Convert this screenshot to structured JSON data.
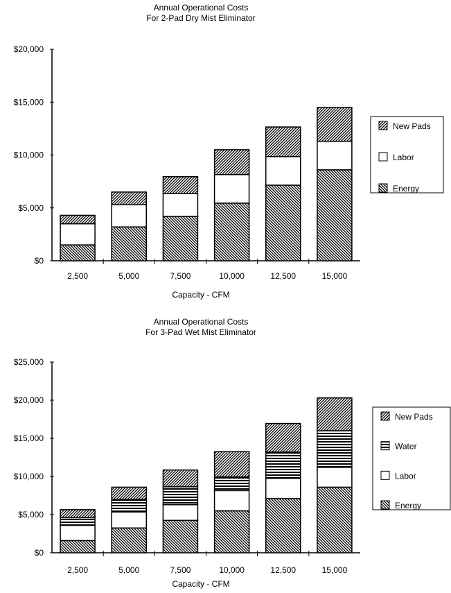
{
  "chart_data": [
    {
      "type": "bar",
      "stacked": true,
      "title": "Annual Operational Costs",
      "subtitle": "For 2-Pad Dry Mist Eliminator",
      "xlabel": "Capacity - CFM",
      "ylabel": "",
      "ylim": [
        0,
        20000
      ],
      "yticks": [
        "$0",
        "$5,000",
        "$10,000",
        "$15,000",
        "$20,000"
      ],
      "ytick_values": [
        0,
        5000,
        10000,
        15000,
        20000
      ],
      "categories": [
        "2,500",
        "5,000",
        "7,500",
        "10,000",
        "12,500",
        "15,000"
      ],
      "legend_position": "right",
      "legend_order": [
        "New Pads",
        "Labor",
        "Energy"
      ],
      "series": [
        {
          "name": "Energy",
          "pattern": "diagonal-back",
          "values": [
            1500,
            3200,
            4200,
            5450,
            7150,
            8600
          ]
        },
        {
          "name": "Labor",
          "pattern": "blank",
          "values": [
            2000,
            2100,
            2150,
            2700,
            2700,
            2700
          ]
        },
        {
          "name": "New Pads",
          "pattern": "diagonal-forward",
          "values": [
            800,
            1200,
            1600,
            2350,
            2800,
            3200
          ]
        }
      ]
    },
    {
      "type": "bar",
      "stacked": true,
      "title": "Annual Operational Costs",
      "subtitle": "For 3-Pad Wet Mist Eliminator",
      "xlabel": "Capacity - CFM",
      "ylabel": "",
      "ylim": [
        0,
        25000
      ],
      "yticks": [
        "$0",
        "$5,000",
        "$10,000",
        "$15,000",
        "$20,000",
        "$25,000"
      ],
      "ytick_values": [
        0,
        5000,
        10000,
        15000,
        20000,
        25000
      ],
      "categories": [
        "2,500",
        "5,000",
        "7,500",
        "10,000",
        "12,500",
        "15,000"
      ],
      "legend_position": "right",
      "legend_order": [
        "New Pads",
        "Water",
        "Labor",
        "Energy"
      ],
      "series": [
        {
          "name": "Energy",
          "pattern": "diagonal-back",
          "values": [
            1600,
            3250,
            4250,
            5500,
            7100,
            8600
          ]
        },
        {
          "name": "Labor",
          "pattern": "blank",
          "values": [
            2000,
            2100,
            2050,
            2650,
            2650,
            2600
          ]
        },
        {
          "name": "Water",
          "pattern": "horizontal",
          "values": [
            1000,
            1650,
            2350,
            1800,
            3450,
            4800
          ]
        },
        {
          "name": "New Pads",
          "pattern": "diagonal-forward",
          "values": [
            1050,
            1600,
            2200,
            3300,
            3750,
            4300
          ]
        }
      ]
    }
  ]
}
